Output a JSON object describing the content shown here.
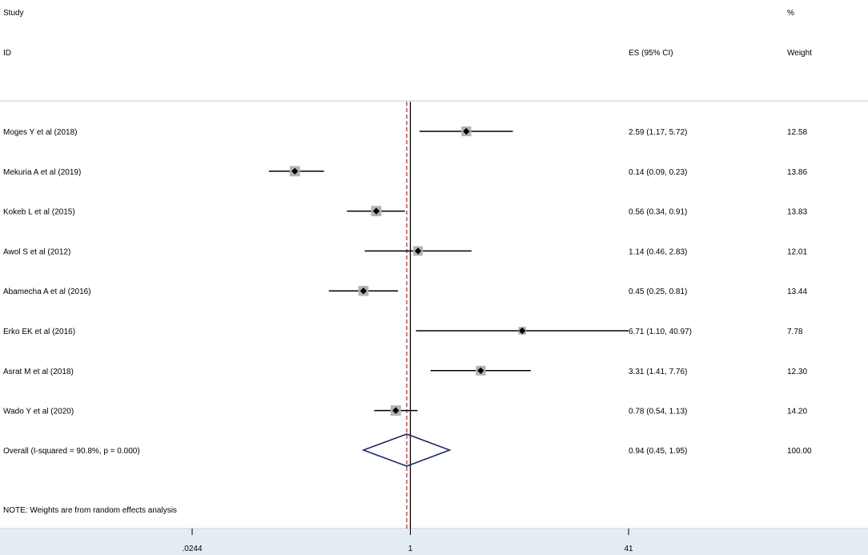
{
  "header": {
    "study_label": "Study",
    "id_label": "ID",
    "es_label": "ES (95% CI)",
    "percent_label": "%",
    "weight_label": "Weight"
  },
  "note": "NOTE: Weights are from random effects analysis",
  "colors": {
    "marker": "#000000",
    "weight_box": "#b3b3b3",
    "diamond": "#1f2a6b",
    "null_line": "#000000",
    "overall_line": "#b22222",
    "axis_band": "#e4ecf4",
    "rule": "#c8c8c8"
  },
  "chart_data": {
    "type": "forest",
    "x_scale": "log",
    "xlim": [
      0.0244,
      41
    ],
    "xticks": [
      {
        "value": 0.0244,
        "label": ".0244"
      },
      {
        "value": 1,
        "label": "1"
      },
      {
        "value": 41,
        "label": "41"
      }
    ],
    "null_value": 1,
    "studies": [
      {
        "label": "Moges Y et al (2018)",
        "es": 2.59,
        "lo": 1.17,
        "hi": 5.72,
        "ci_text": "2.59 (1.17, 5.72)",
        "weight": 12.58,
        "weight_text": "12.58"
      },
      {
        "label": "Mekuria A et al (2019)",
        "es": 0.14,
        "lo": 0.09,
        "hi": 0.23,
        "ci_text": "0.14 (0.09, 0.23)",
        "weight": 13.86,
        "weight_text": "13.86"
      },
      {
        "label": "Kokeb L et al (2015)",
        "es": 0.56,
        "lo": 0.34,
        "hi": 0.91,
        "ci_text": "0.56 (0.34, 0.91)",
        "weight": 13.83,
        "weight_text": "13.83"
      },
      {
        "label": "Awol S et al (2012)",
        "es": 1.14,
        "lo": 0.46,
        "hi": 2.83,
        "ci_text": "1.14 (0.46, 2.83)",
        "weight": 12.01,
        "weight_text": "12.01"
      },
      {
        "label": "Abamecha A et al (2016)",
        "es": 0.45,
        "lo": 0.25,
        "hi": 0.81,
        "ci_text": "0.45 (0.25, 0.81)",
        "weight": 13.44,
        "weight_text": "13.44"
      },
      {
        "label": "Erko EK et al (2016)",
        "es": 6.71,
        "lo": 1.1,
        "hi": 40.97,
        "ci_text": "6.71 (1.10, 40.97)",
        "weight": 7.78,
        "weight_text": "7.78"
      },
      {
        "label": "Asrat M et al (2018)",
        "es": 3.31,
        "lo": 1.41,
        "hi": 7.76,
        "ci_text": "3.31 (1.41, 7.76)",
        "weight": 12.3,
        "weight_text": "12.30"
      },
      {
        "label": "Wado Y et al (2020)",
        "es": 0.78,
        "lo": 0.54,
        "hi": 1.13,
        "ci_text": "0.78 (0.54, 1.13)",
        "weight": 14.2,
        "weight_text": "14.20"
      }
    ],
    "overall": {
      "label": "Overall  (I-squared = 90.8%, p = 0.000)",
      "es": 0.94,
      "lo": 0.45,
      "hi": 1.95,
      "ci_text": "0.94 (0.45, 1.95)",
      "weight_text": "100.00"
    }
  }
}
